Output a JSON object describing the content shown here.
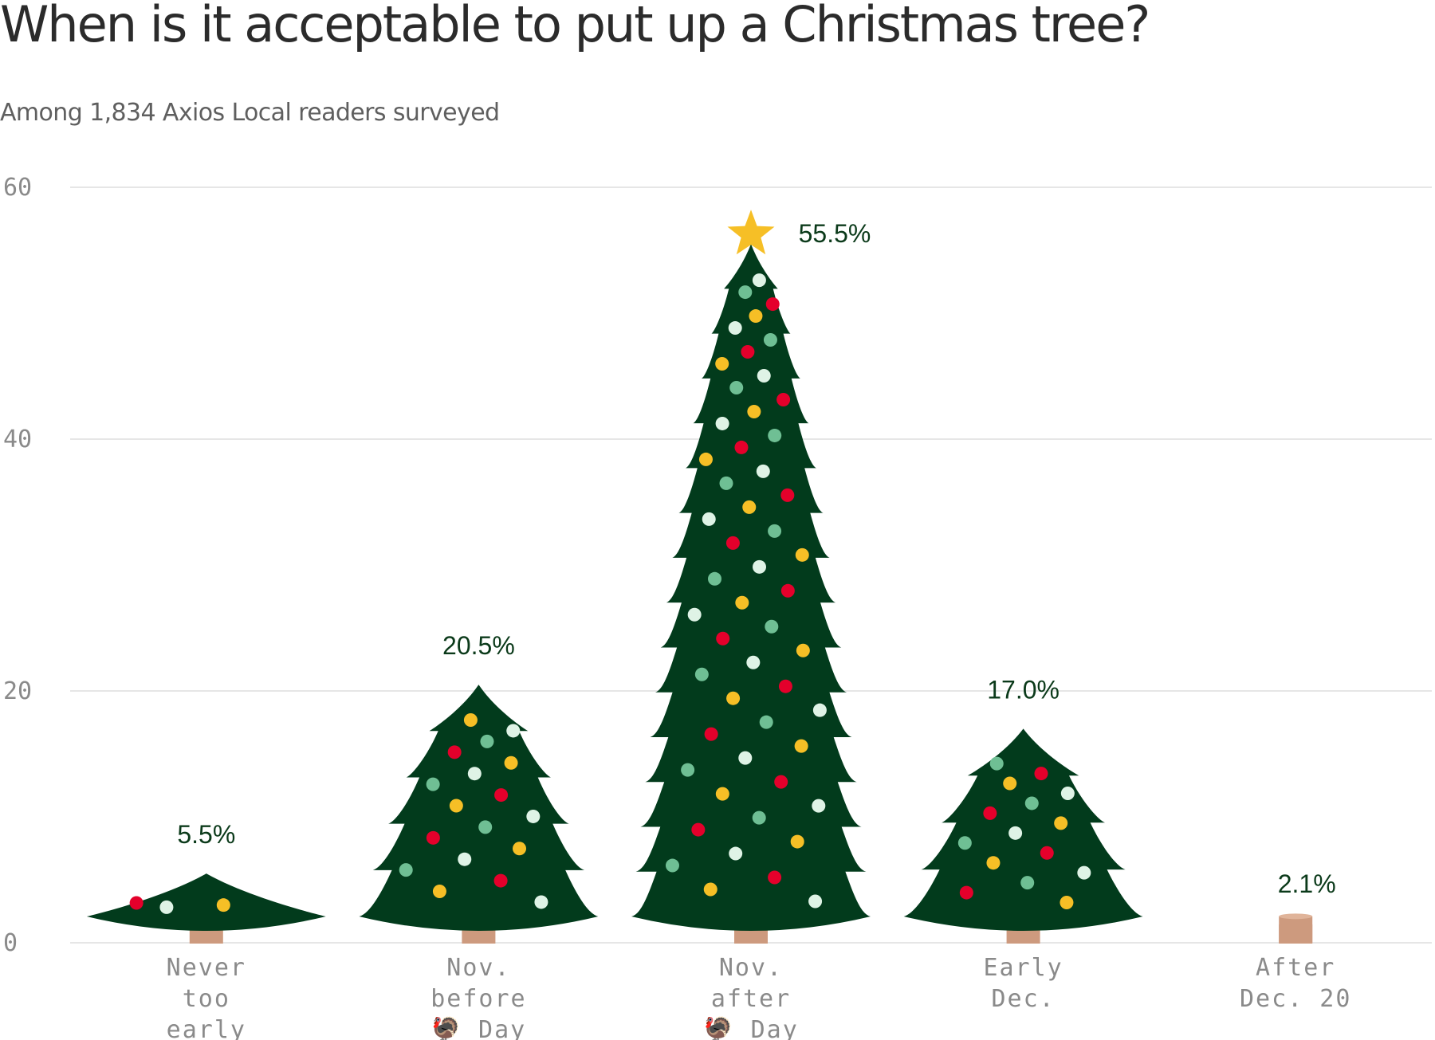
{
  "title": "When is it acceptable to put up a Christmas tree?",
  "subtitle": "Among 1,834 Axios Local readers surveyed",
  "colors": {
    "tree": "#023b1c",
    "trunk": "#cd9a7e",
    "star": "#f6bf26",
    "grid": "#e6e6e6",
    "axis_text": "#8a8a8a",
    "label_text": "#0b3a1a",
    "ornament_red": "#e4002b",
    "ornament_yellow": "#f6bf26",
    "ornament_white": "#dff3e6",
    "ornament_green": "#6fbf94"
  },
  "chart_data": {
    "type": "bar",
    "bar_style": "christmas-tree",
    "categories": [
      [
        "Never",
        "too",
        "early"
      ],
      [
        "Nov.",
        "before",
        "🦃 Day"
      ],
      [
        "Nov.",
        "after",
        "🦃 Day"
      ],
      [
        "Early",
        "Dec."
      ],
      [
        "After",
        "Dec. 20"
      ]
    ],
    "values": [
      5.5,
      20.5,
      55.5,
      17.0,
      2.1
    ],
    "value_labels": [
      "5.5%",
      "20.5%",
      "55.5%",
      "17.0%",
      "2.1%"
    ],
    "ylim": [
      0,
      60
    ],
    "yticks": [
      0,
      20,
      40,
      60
    ],
    "ytick_labels": [
      "0",
      "20",
      "40",
      "60"
    ],
    "grid": true,
    "xlabel": "",
    "ylabel": "",
    "star_on_max": true
  }
}
